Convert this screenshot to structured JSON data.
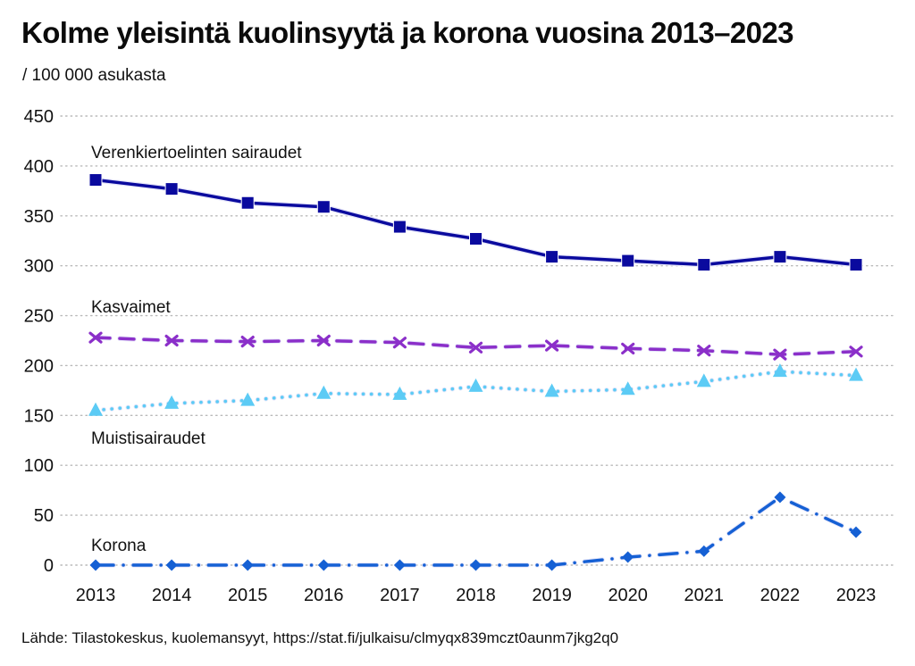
{
  "header": {
    "title": "Kolme yleisintä kuolinsyytä ja korona vuosina 2013–2023",
    "subtitle": "/ 100 000 asukasta"
  },
  "footer": {
    "source": "Lähde: Tilastokeskus, kuolemansyyt, https://stat.fi/julkaisu/clmyqx839mczt0aunm7jkg2q0"
  },
  "chart_data": {
    "type": "line",
    "title": "Kolme yleisintä kuolinsyytä ja korona vuosina 2013–2023",
    "subtitle": "/ 100 000 asukasta",
    "xlabel": "",
    "ylabel": "/ 100 000 asukasta",
    "categories": [
      "2013",
      "2014",
      "2015",
      "2016",
      "2017",
      "2018",
      "2019",
      "2020",
      "2021",
      "2022",
      "2023"
    ],
    "ylim": [
      0,
      450
    ],
    "yticks": [
      0,
      50,
      100,
      150,
      200,
      250,
      300,
      350,
      400,
      450
    ],
    "grid": true,
    "legend": "inline labels",
    "series": [
      {
        "name": "Verenkiertoelinten sairaudet",
        "color": "#0a0a9e",
        "marker": "square",
        "line_style": "solid",
        "values": [
          386,
          377,
          363,
          359,
          339,
          327,
          309,
          305,
          301,
          309,
          301
        ]
      },
      {
        "name": "Kasvaimet",
        "color": "#8b2fc9",
        "marker": "x",
        "line_style": "dashed",
        "values": [
          228,
          225,
          224,
          225,
          223,
          218,
          220,
          217,
          215,
          211,
          214
        ]
      },
      {
        "name": "Muistisairaudet",
        "color": "#5ccbf5",
        "marker": "triangle",
        "line_style": "dotted",
        "values": [
          155,
          162,
          165,
          172,
          171,
          179,
          174,
          176,
          184,
          194,
          190
        ]
      },
      {
        "name": "Korona",
        "color": "#1560d4",
        "marker": "diamond",
        "line_style": "dash-dot",
        "values": [
          0,
          0,
          0,
          0,
          0,
          0,
          0,
          8,
          14,
          68,
          33
        ]
      }
    ]
  }
}
